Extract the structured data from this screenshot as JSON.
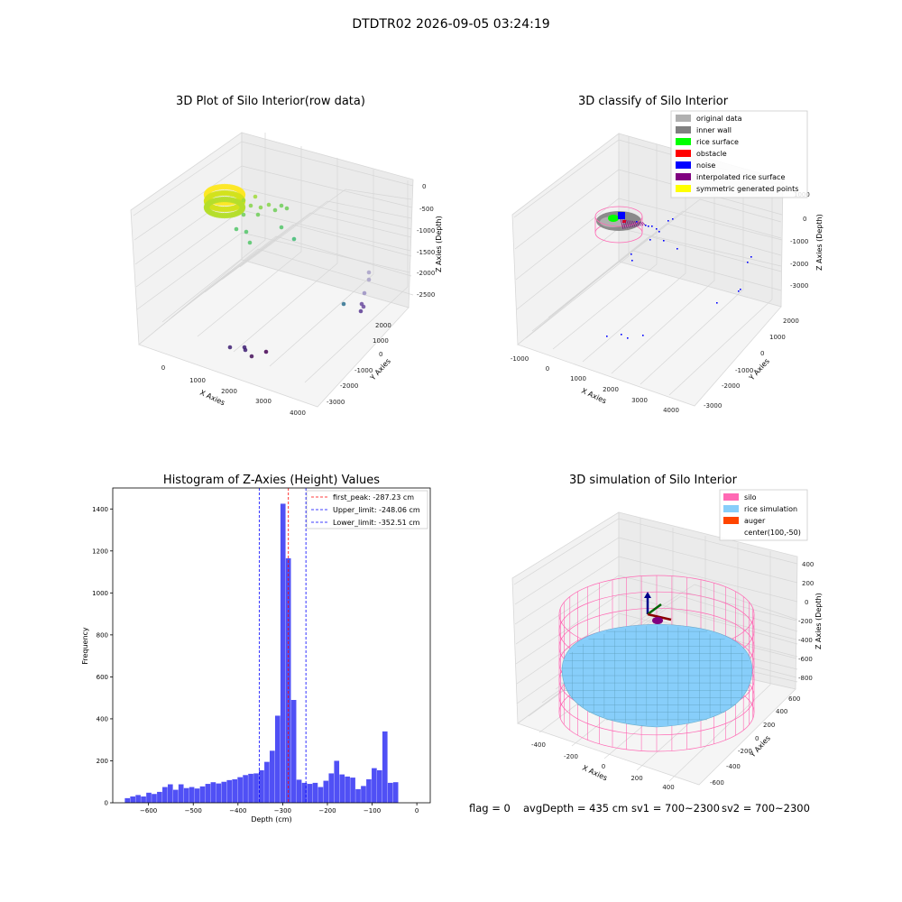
{
  "suptitle": "DTDTR02 2026-09-05 03:24:19",
  "footer": {
    "flag": "flag = 0",
    "avg_depth": "avgDepth = 435 cm",
    "sv1": "sv1 = 700~2300",
    "sv2": "sv2 = 700~2300"
  },
  "colors": {
    "hist_bar": "#5050f5",
    "first_peak": "#ff0000",
    "limit_lines": "#0000ff",
    "silo": "#ff69b4",
    "rice_simulation": "#87cefa",
    "auger": "#ff4500",
    "original_data": "#b0b0b0",
    "inner_wall": "#808080",
    "rice_surface": "#00ff00",
    "obstacle": "#ff0000",
    "noise": "#0000ff",
    "interpolated_rice_surface": "#800080",
    "symmetric_generated_points": "#ffff00"
  },
  "chart_data": [
    {
      "type": "scatter",
      "title": "3D Plot of Silo Interior(row data)",
      "xlabel": "X Axies",
      "ylabel": "Y Axies",
      "zlabel": "Z Axies (Depth)",
      "xticks": [
        "0",
        "1000",
        "2000",
        "3000",
        "4000"
      ],
      "yticks": [
        "-3000",
        "-2000",
        "-1000",
        "0",
        "1000",
        "2000"
      ],
      "zticks": [
        "0",
        "-500",
        "-1000",
        "-1500",
        "-2000",
        "-2500"
      ],
      "colormap": "viridis (by depth)"
    },
    {
      "type": "scatter",
      "title": "3D classify of Silo Interior",
      "xlabel": "X Axies",
      "ylabel": "Y Axies",
      "zlabel": "Z Axies (Depth)",
      "xticks": [
        "-1000",
        "0",
        "1000",
        "2000",
        "3000",
        "4000"
      ],
      "yticks": [
        "-3000",
        "-2000",
        "-1000",
        "0",
        "1000",
        "2000"
      ],
      "zticks": [
        "1000",
        "0",
        "-1000",
        "-2000",
        "-3000"
      ],
      "legend": [
        "original data",
        "inner wall",
        "rice surface",
        "obstacle",
        "noise",
        "interpolated rice surface",
        "symmetric generated points"
      ],
      "legend_position": "top-right"
    },
    {
      "type": "bar",
      "title": "Histogram of Z-Axies (Height) Values",
      "xlabel": "Depth (cm)",
      "ylabel": "Frequency",
      "xlim": [
        -680,
        30
      ],
      "ylim": [
        0,
        1500
      ],
      "xticks": [
        -600,
        -500,
        -400,
        -300,
        -200,
        -100,
        0
      ],
      "yticks": [
        0,
        200,
        400,
        600,
        800,
        1000,
        1200,
        1400
      ],
      "bin_width": 12,
      "bins": [
        [
          -653,
          22
        ],
        [
          -641,
          30
        ],
        [
          -629,
          37
        ],
        [
          -617,
          30
        ],
        [
          -605,
          48
        ],
        [
          -593,
          42
        ],
        [
          -581,
          52
        ],
        [
          -569,
          75
        ],
        [
          -557,
          88
        ],
        [
          -545,
          62
        ],
        [
          -533,
          88
        ],
        [
          -521,
          70
        ],
        [
          -509,
          75
        ],
        [
          -497,
          68
        ],
        [
          -485,
          78
        ],
        [
          -473,
          90
        ],
        [
          -461,
          98
        ],
        [
          -449,
          92
        ],
        [
          -437,
          100
        ],
        [
          -425,
          108
        ],
        [
          -413,
          112
        ],
        [
          -401,
          122
        ],
        [
          -389,
          132
        ],
        [
          -377,
          138
        ],
        [
          -365,
          140
        ],
        [
          -353,
          155
        ],
        [
          -341,
          195
        ],
        [
          -329,
          248
        ],
        [
          -317,
          415
        ],
        [
          -305,
          1425
        ],
        [
          -293,
          1165
        ],
        [
          -281,
          490
        ],
        [
          -269,
          110
        ],
        [
          -257,
          95
        ],
        [
          -245,
          90
        ],
        [
          -233,
          95
        ],
        [
          -221,
          75
        ],
        [
          -209,
          105
        ],
        [
          -197,
          140
        ],
        [
          -185,
          200
        ],
        [
          -173,
          135
        ],
        [
          -161,
          125
        ],
        [
          -149,
          120
        ],
        [
          -137,
          65
        ],
        [
          -125,
          80
        ],
        [
          -113,
          112
        ],
        [
          -101,
          165
        ],
        [
          -89,
          155
        ],
        [
          -77,
          340
        ],
        [
          -65,
          95
        ],
        [
          -53,
          98
        ]
      ],
      "vlines": [
        {
          "name": "first_peak: -287.23 cm",
          "x": -287.23,
          "color": "#ff0000"
        },
        {
          "name": "Upper_limit: -248.06 cm",
          "x": -248.06,
          "color": "#0000ff"
        },
        {
          "name": "Lower_limit: -352.51 cm",
          "x": -352.51,
          "color": "#0000ff"
        }
      ],
      "legend_position": "top-right"
    },
    {
      "type": "surface",
      "title": "3D simulation of Silo Interior",
      "xlabel": "X Axies",
      "ylabel": "Y Axies",
      "zlabel": "Z Axies (Depth)",
      "xticks": [
        "-400",
        "-200",
        "0",
        "200",
        "400",
        "600"
      ],
      "yticks": [
        "-600",
        "-400",
        "-200",
        "0",
        "200",
        "400",
        "600"
      ],
      "zticks": [
        "400",
        "200",
        "0",
        "-200",
        "-400",
        "-600",
        "-800"
      ],
      "legend": [
        "silo",
        "rice simulation",
        "auger",
        "center(100,-50)"
      ],
      "legend_position": "top-right"
    }
  ]
}
